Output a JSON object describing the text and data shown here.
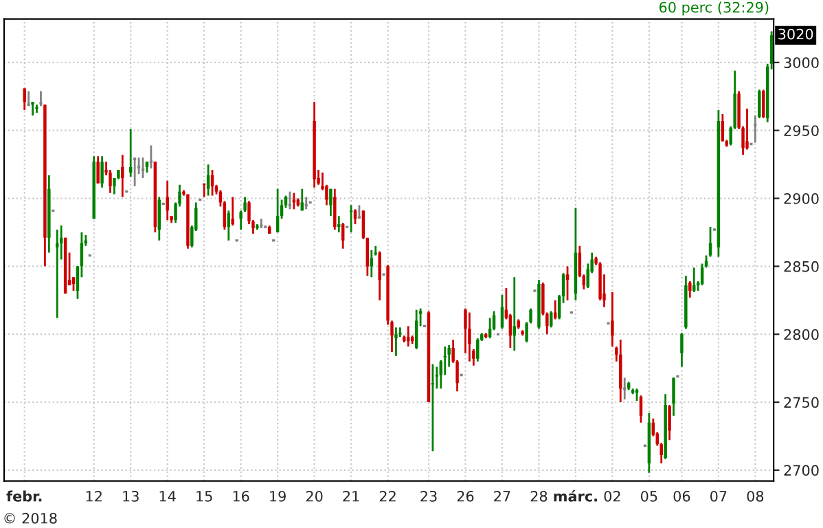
{
  "chart_data": {
    "type": "candlestick",
    "annotations": [
      "60 perc (32:29)",
      "© 2018",
      {
        "text": "3020",
        "y": 3020
      }
    ],
    "categories": [
      "febr.",
      null,
      null,
      null,
      null,
      null,
      null,
      null,
      null,
      null,
      null,
      null,
      null,
      null,
      null,
      null,
      null,
      "12",
      null,
      null,
      null,
      null,
      null,
      null,
      null,
      null,
      "13",
      null,
      null,
      null,
      null,
      null,
      null,
      null,
      null,
      "14",
      null,
      null,
      null,
      null,
      null,
      null,
      null,
      null,
      "15",
      null,
      null,
      null,
      null,
      null,
      null,
      null,
      null,
      "16",
      null,
      null,
      null,
      null,
      null,
      null,
      null,
      null,
      "19",
      null,
      null,
      null,
      null,
      null,
      null,
      null,
      null,
      "20",
      null,
      null,
      null,
      null,
      null,
      null,
      null,
      null,
      "21",
      null,
      null,
      null,
      null,
      null,
      null,
      null,
      null,
      "22",
      null,
      null,
      null,
      null,
      null,
      null,
      null,
      null,
      null,
      "23",
      null,
      null,
      null,
      null,
      null,
      null,
      null,
      null,
      "26",
      null,
      null,
      null,
      null,
      null,
      null,
      null,
      null,
      "27",
      null,
      null,
      null,
      null,
      null,
      null,
      null,
      null,
      "28",
      null,
      null,
      null,
      null,
      null,
      null,
      null,
      null,
      "márc.",
      null,
      null,
      null,
      null,
      null,
      null,
      null,
      null,
      "02",
      null,
      null,
      null,
      null,
      null,
      null,
      null,
      null,
      "05",
      null,
      null,
      null,
      null,
      null,
      null,
      null,
      "06",
      null,
      null,
      null,
      null,
      null,
      null,
      null,
      null,
      "07",
      null,
      null,
      null,
      null,
      null,
      null,
      null,
      null,
      "08",
      null,
      null,
      null,
      null
    ],
    "ohlc": [
      [
        2981,
        2981,
        2965,
        2971
      ],
      [
        2969,
        2979,
        2968,
        2969
      ],
      [
        2969,
        2971,
        2961,
        2971
      ],
      [
        2966,
        2969,
        2963,
        2967
      ],
      [
        2970,
        2979,
        2968,
        2970
      ],
      [
        2969,
        2969,
        2850,
        2871
      ],
      [
        2871,
        2917,
        2860,
        2907
      ],
      [
        2891,
        2891,
        2891,
        2891
      ],
      [
        2864,
        2877,
        2812,
        2867
      ],
      [
        2867,
        2880,
        2855,
        2871
      ],
      [
        2871,
        2871,
        2830,
        2830
      ],
      [
        2840,
        2860,
        2836,
        2836
      ],
      [
        2842,
        2842,
        2832,
        2837
      ],
      [
        2832,
        2850,
        2826,
        2850
      ],
      [
        2850,
        2875,
        2842,
        2867
      ],
      [
        2867,
        2873,
        2865,
        2869
      ],
      [
        2858,
        2858,
        2858,
        2858
      ],
      [
        2885,
        2931,
        2885,
        2927
      ],
      [
        2927,
        2931,
        2911,
        2911
      ],
      [
        2911,
        2931,
        2908,
        2927
      ],
      [
        2921,
        2927,
        2917,
        2919
      ],
      [
        2919,
        2921,
        2904,
        2909
      ],
      [
        2909,
        2915,
        2903,
        2915
      ],
      [
        2915,
        2921,
        2914,
        2921
      ],
      [
        2923,
        2932,
        2901,
        2915
      ],
      [
        2905,
        2905,
        2905,
        2905
      ],
      [
        2919,
        2951,
        2916,
        2923
      ],
      [
        2929,
        2930,
        2909,
        2929
      ],
      [
        2923,
        2930,
        2918,
        2923
      ],
      [
        2921,
        2930,
        2915,
        2921
      ],
      [
        2923,
        2927,
        2919,
        2927
      ],
      [
        2927,
        2939,
        2922,
        2927
      ],
      [
        2927,
        2927,
        2875,
        2879
      ],
      [
        2877,
        2901,
        2869,
        2899
      ],
      [
        2896,
        2896,
        2896,
        2896
      ],
      [
        2901,
        2913,
        2884,
        2891
      ],
      [
        2887,
        2887,
        2882,
        2884
      ],
      [
        2884,
        2897,
        2882,
        2896
      ],
      [
        2896,
        2910,
        2894,
        2905
      ],
      [
        2905,
        2906,
        2902,
        2903
      ],
      [
        2903,
        2903,
        2863,
        2865
      ],
      [
        2865,
        2880,
        2864,
        2879
      ],
      [
        2877,
        2897,
        2876,
        2893
      ],
      [
        2899,
        2899,
        2899,
        2899
      ],
      [
        2911,
        2911,
        2901,
        2910
      ],
      [
        2907,
        2925,
        2902,
        2917
      ],
      [
        2917,
        2921,
        2902,
        2909
      ],
      [
        2909,
        2910,
        2903,
        2905
      ],
      [
        2905,
        2906,
        2894,
        2897
      ],
      [
        2897,
        2898,
        2877,
        2879
      ],
      [
        2879,
        2891,
        2869,
        2889
      ],
      [
        2885,
        2901,
        2880,
        2881
      ],
      [
        2869,
        2869,
        2869,
        2869
      ],
      [
        2885,
        2891,
        2877,
        2890
      ],
      [
        2891,
        2901,
        2890,
        2897
      ],
      [
        2897,
        2898,
        2881,
        2883
      ],
      [
        2883,
        2884,
        2874,
        2878
      ],
      [
        2878,
        2881,
        2877,
        2880
      ],
      [
        2880,
        2885,
        2878,
        2880
      ],
      [
        2879,
        2880,
        2878,
        2879
      ],
      [
        2879,
        2880,
        2874,
        2874
      ],
      [
        2869,
        2869,
        2869,
        2869
      ],
      [
        2875,
        2907,
        2875,
        2887
      ],
      [
        2887,
        2899,
        2885,
        2895
      ],
      [
        2895,
        2902,
        2893,
        2901
      ],
      [
        2895,
        2905,
        2892,
        2895
      ],
      [
        2899,
        2904,
        2892,
        2897
      ],
      [
        2899,
        2900,
        2894,
        2895
      ],
      [
        2891,
        2907,
        2891,
        2897
      ],
      [
        2895,
        2901,
        2892,
        2895
      ],
      [
        2897,
        2897,
        2897,
        2897
      ],
      [
        2957,
        2971,
        2908,
        2914
      ],
      [
        2915,
        2921,
        2910,
        2911
      ],
      [
        2909,
        2919,
        2906,
        2907
      ],
      [
        2909,
        2910,
        2895,
        2899
      ],
      [
        2895,
        2907,
        2887,
        2907
      ],
      [
        2901,
        2907,
        2877,
        2879
      ],
      [
        2879,
        2887,
        2875,
        2881
      ],
      [
        2881,
        2882,
        2863,
        2869
      ],
      [
        2879,
        2879,
        2879,
        2879
      ],
      [
        2890,
        2895,
        2875,
        2891
      ],
      [
        2891,
        2892,
        2881,
        2885
      ],
      [
        2886,
        2895,
        2885,
        2886
      ],
      [
        2891,
        2891,
        2870,
        2871
      ],
      [
        2871,
        2871,
        2843,
        2850
      ],
      [
        2850,
        2862,
        2842,
        2856
      ],
      [
        2859,
        2865,
        2858,
        2860
      ],
      [
        2860,
        2861,
        2825,
        2840
      ],
      [
        2844,
        2844,
        2844,
        2844
      ],
      [
        2850,
        2851,
        2807,
        2810
      ],
      [
        2809,
        2810,
        2787,
        2799
      ],
      [
        2797,
        2805,
        2784,
        2800
      ],
      [
        2800,
        2805,
        2798,
        2801
      ],
      [
        2798,
        2799,
        2794,
        2795
      ],
      [
        2798,
        2806,
        2791,
        2795
      ],
      [
        2798,
        2799,
        2793,
        2795
      ],
      [
        2790,
        2818,
        2789,
        2810
      ],
      [
        2815,
        2819,
        2806,
        2817
      ],
      [
        2806,
        2806,
        2806,
        2806
      ],
      [
        2816,
        2817,
        2750,
        2750
      ],
      [
        2763,
        2778,
        2714,
        2764
      ],
      [
        2769,
        2776,
        2760,
        2770
      ],
      [
        2770,
        2781,
        2760,
        2780
      ],
      [
        2783,
        2791,
        2770,
        2784
      ],
      [
        2785,
        2792,
        2776,
        2790
      ],
      [
        2790,
        2796,
        2779,
        2780
      ],
      [
        2780,
        2781,
        2758,
        2764
      ],
      [
        2770,
        2770,
        2770,
        2770
      ],
      [
        2818,
        2819,
        2786,
        2804
      ],
      [
        2804,
        2816,
        2780,
        2793
      ],
      [
        2788,
        2789,
        2777,
        2782
      ],
      [
        2782,
        2797,
        2780,
        2796
      ],
      [
        2796,
        2801,
        2795,
        2800
      ],
      [
        2800,
        2801,
        2797,
        2798
      ],
      [
        2798,
        2812,
        2797,
        2804
      ],
      [
        2804,
        2817,
        2803,
        2814
      ],
      [
        2800,
        2800,
        2800,
        2800
      ],
      [
        2805,
        2829,
        2804,
        2820
      ],
      [
        2818,
        2834,
        2811,
        2812
      ],
      [
        2814,
        2815,
        2790,
        2799
      ],
      [
        2799,
        2842,
        2788,
        2806
      ],
      [
        2810,
        2811,
        2804,
        2805
      ],
      [
        2802,
        2803,
        2799,
        2800
      ],
      [
        2795,
        2809,
        2794,
        2808
      ],
      [
        2809,
        2819,
        2808,
        2818
      ],
      [
        2832,
        2832,
        2832,
        2832
      ],
      [
        2805,
        2840,
        2804,
        2837
      ],
      [
        2837,
        2838,
        2814,
        2815
      ],
      [
        2815,
        2816,
        2800,
        2806
      ],
      [
        2806,
        2817,
        2805,
        2816
      ],
      [
        2816,
        2825,
        2811,
        2812
      ],
      [
        2812,
        2829,
        2811,
        2828
      ],
      [
        2828,
        2845,
        2823,
        2844
      ],
      [
        2844,
        2850,
        2825,
        2840
      ],
      [
        2816,
        2816,
        2816,
        2816
      ],
      [
        2830,
        2893,
        2825,
        2860
      ],
      [
        2860,
        2865,
        2842,
        2843
      ],
      [
        2843,
        2844,
        2833,
        2836
      ],
      [
        2835,
        2852,
        2834,
        2848
      ],
      [
        2846,
        2860,
        2845,
        2855
      ],
      [
        2856,
        2857,
        2851,
        2852
      ],
      [
        2852,
        2853,
        2825,
        2826
      ],
      [
        2830,
        2844,
        2820,
        2825
      ],
      [
        2808,
        2808,
        2808,
        2808
      ],
      [
        2810,
        2831,
        2791,
        2799
      ],
      [
        2790,
        2791,
        2780,
        2785
      ],
      [
        2785,
        2796,
        2750,
        2760
      ],
      [
        2760,
        2768,
        2752,
        2760
      ],
      [
        2760,
        2765,
        2759,
        2764
      ],
      [
        2757,
        2760,
        2756,
        2759
      ],
      [
        2757,
        2760,
        2751,
        2759
      ],
      [
        2754,
        2755,
        2735,
        2740
      ],
      [
        2718,
        2718,
        2718,
        2718
      ],
      [
        2705,
        2742,
        2698,
        2735
      ],
      [
        2735,
        2738,
        2725,
        2726
      ],
      [
        2727,
        2728,
        2718,
        2719
      ],
      [
        2719,
        2720,
        2705,
        2711
      ],
      [
        2709,
        2756,
        2708,
        2748
      ],
      [
        2747,
        2748,
        2722,
        2729
      ],
      [
        2749,
        2768,
        2740,
        2768
      ],
      [
        2769,
        2769,
        2769,
        2769
      ],
      [
        2786,
        2801,
        2776,
        2800
      ],
      [
        2805,
        2843,
        2804,
        2836
      ],
      [
        2838,
        2839,
        2827,
        2832
      ],
      [
        2832,
        2849,
        2831,
        2836
      ],
      [
        2836,
        2839,
        2832,
        2838
      ],
      [
        2837,
        2852,
        2836,
        2849
      ],
      [
        2850,
        2858,
        2849,
        2854
      ],
      [
        2858,
        2879,
        2857,
        2867
      ],
      [
        2877,
        2877,
        2877,
        2877
      ],
      [
        2864,
        2965,
        2857,
        2957
      ],
      [
        2957,
        2962,
        2942,
        2942
      ],
      [
        2942,
        2943,
        2938,
        2939
      ],
      [
        2940,
        2953,
        2939,
        2952
      ],
      [
        2952,
        2994,
        2951,
        2977
      ],
      [
        2977,
        2979,
        2951,
        2952
      ],
      [
        2952,
        2953,
        2932,
        2937
      ],
      [
        2942,
        2966,
        2936,
        2937
      ],
      [
        2940,
        2940,
        2940,
        2940
      ],
      [
        2954,
        2961,
        2941,
        2954
      ],
      [
        2960,
        2980,
        2959,
        2979
      ],
      [
        2979,
        2980,
        2959,
        2960
      ],
      [
        2959,
        2999,
        2956,
        2997
      ],
      [
        2999,
        3023,
        2995,
        3020
      ]
    ],
    "colors": [
      "#cc0000",
      "#808080",
      "#008000",
      "#008000",
      "#808080",
      "#cc0000",
      "#008000",
      "#808080",
      "#008000",
      "#008000",
      "#cc0000",
      "#cc0000",
      "#cc0000",
      "#008000",
      "#008000",
      "#008000",
      "#808080",
      "#008000",
      "#cc0000",
      "#008000",
      "#cc0000",
      "#cc0000",
      "#008000",
      "#008000",
      "#cc0000",
      "#808080",
      "#008000",
      "#808080",
      "#808080",
      "#808080",
      "#008000",
      "#808080",
      "#cc0000",
      "#008000",
      "#808080",
      "#cc0000",
      "#cc0000",
      "#008000",
      "#008000",
      "#cc0000",
      "#cc0000",
      "#008000",
      "#008000",
      "#808080",
      "#cc0000",
      "#008000",
      "#cc0000",
      "#cc0000",
      "#cc0000",
      "#cc0000",
      "#008000",
      "#cc0000",
      "#808080",
      "#008000",
      "#008000",
      "#cc0000",
      "#cc0000",
      "#008000",
      "#808080",
      "#808080",
      "#cc0000",
      "#808080",
      "#008000",
      "#008000",
      "#008000",
      "#808080",
      "#cc0000",
      "#cc0000",
      "#008000",
      "#808080",
      "#808080",
      "#cc0000",
      "#cc0000",
      "#cc0000",
      "#cc0000",
      "#008000",
      "#cc0000",
      "#008000",
      "#cc0000",
      "#808080",
      "#008000",
      "#cc0000",
      "#808080",
      "#cc0000",
      "#cc0000",
      "#008000",
      "#008000",
      "#cc0000",
      "#808080",
      "#cc0000",
      "#cc0000",
      "#008000",
      "#008000",
      "#cc0000",
      "#cc0000",
      "#cc0000",
      "#008000",
      "#008000",
      "#808080",
      "#cc0000",
      "#008000",
      "#008000",
      "#008000",
      "#008000",
      "#008000",
      "#cc0000",
      "#cc0000",
      "#808080",
      "#cc0000",
      "#cc0000",
      "#cc0000",
      "#008000",
      "#008000",
      "#cc0000",
      "#008000",
      "#008000",
      "#808080",
      "#008000",
      "#cc0000",
      "#cc0000",
      "#008000",
      "#cc0000",
      "#cc0000",
      "#008000",
      "#008000",
      "#808080",
      "#008000",
      "#cc0000",
      "#cc0000",
      "#008000",
      "#cc0000",
      "#008000",
      "#008000",
      "#cc0000",
      "#808080",
      "#008000",
      "#cc0000",
      "#cc0000",
      "#008000",
      "#008000",
      "#cc0000",
      "#cc0000",
      "#cc0000",
      "#808080",
      "#cc0000",
      "#cc0000",
      "#cc0000",
      "#808080",
      "#008000",
      "#008000",
      "#008000",
      "#cc0000",
      "#808080",
      "#008000",
      "#cc0000",
      "#cc0000",
      "#cc0000",
      "#008000",
      "#cc0000",
      "#008000",
      "#808080",
      "#008000",
      "#008000",
      "#cc0000",
      "#008000",
      "#008000",
      "#008000",
      "#008000",
      "#008000",
      "#808080",
      "#008000",
      "#cc0000",
      "#cc0000",
      "#008000",
      "#008000",
      "#cc0000",
      "#cc0000",
      "#cc0000",
      "#808080",
      "#808080",
      "#008000",
      "#cc0000",
      "#008000",
      "#008000"
    ],
    "ylim": [
      2692,
      3032
    ],
    "yticks": [
      2700,
      2750,
      2800,
      2850,
      2900,
      2950,
      3000
    ],
    "grid": true
  }
}
